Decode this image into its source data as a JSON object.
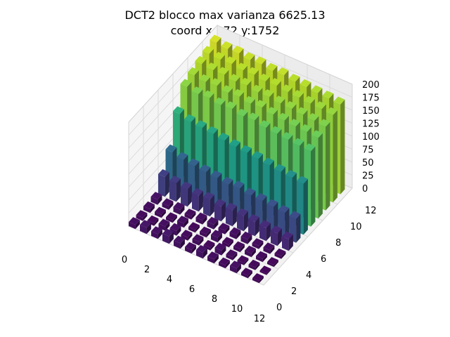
{
  "chart_data": {
    "type": "bar3d",
    "title_lines": [
      "DCT2 blocco max varianza 6625.13",
      "coord x:972 y:1752"
    ],
    "x_ticks": [
      "0",
      "2",
      "4",
      "6",
      "8",
      "10",
      "12"
    ],
    "y_ticks": [
      "0",
      "2",
      "4",
      "6",
      "8",
      "10",
      "12"
    ],
    "z_ticks": [
      "0",
      "25",
      "50",
      "75",
      "100",
      "125",
      "150",
      "175",
      "200"
    ],
    "xlim": [
      0,
      12
    ],
    "ylim": [
      0,
      12
    ],
    "zlim": [
      0,
      200
    ],
    "grid": true,
    "colormap": "viridis",
    "grid_size": [
      12,
      12
    ],
    "bar_footprint": 0.6,
    "y_slices": [
      {
        "y": 0,
        "values": [
          8,
          12,
          9,
          14,
          10,
          7,
          11,
          8,
          6,
          9,
          5,
          4
        ]
      },
      {
        "y": 1,
        "values": [
          6,
          5,
          8,
          9,
          6,
          7,
          5,
          9,
          6,
          4,
          5,
          3
        ]
      },
      {
        "y": 2,
        "values": [
          7,
          6,
          5,
          8,
          5,
          6,
          9,
          5,
          6,
          7,
          6,
          4
        ]
      },
      {
        "y": 3,
        "values": [
          10,
          7,
          9,
          6,
          8,
          9,
          7,
          8,
          9,
          6,
          7,
          5
        ]
      },
      {
        "y": 4,
        "values": [
          38,
          35,
          33,
          30,
          32,
          28,
          30,
          29,
          27,
          25,
          24,
          22
        ]
      },
      {
        "y": 5,
        "values": [
          70,
          65,
          62,
          60,
          58,
          55,
          57,
          53,
          52,
          50,
          48,
          46
        ]
      },
      {
        "y": 6,
        "values": [
          128,
          122,
          120,
          118,
          115,
          112,
          110,
          108,
          105,
          102,
          100,
          98
        ]
      },
      {
        "y": 7,
        "values": [
          165,
          160,
          162,
          158,
          160,
          155,
          157,
          152,
          150,
          148,
          146,
          145
        ]
      },
      {
        "y": 8,
        "values": [
          172,
          168,
          170,
          166,
          168,
          164,
          166,
          162,
          160,
          158,
          157,
          155
        ]
      },
      {
        "y": 9,
        "values": [
          178,
          175,
          176,
          172,
          174,
          170,
          171,
          168,
          167,
          165,
          163,
          161
        ]
      },
      {
        "y": 10,
        "values": [
          182,
          180,
          181,
          178,
          179,
          176,
          177,
          174,
          173,
          171,
          170,
          168
        ]
      },
      {
        "y": 11,
        "values": [
          188,
          185,
          186,
          183,
          184,
          181,
          182,
          179,
          178,
          176,
          175,
          173
        ]
      }
    ]
  }
}
